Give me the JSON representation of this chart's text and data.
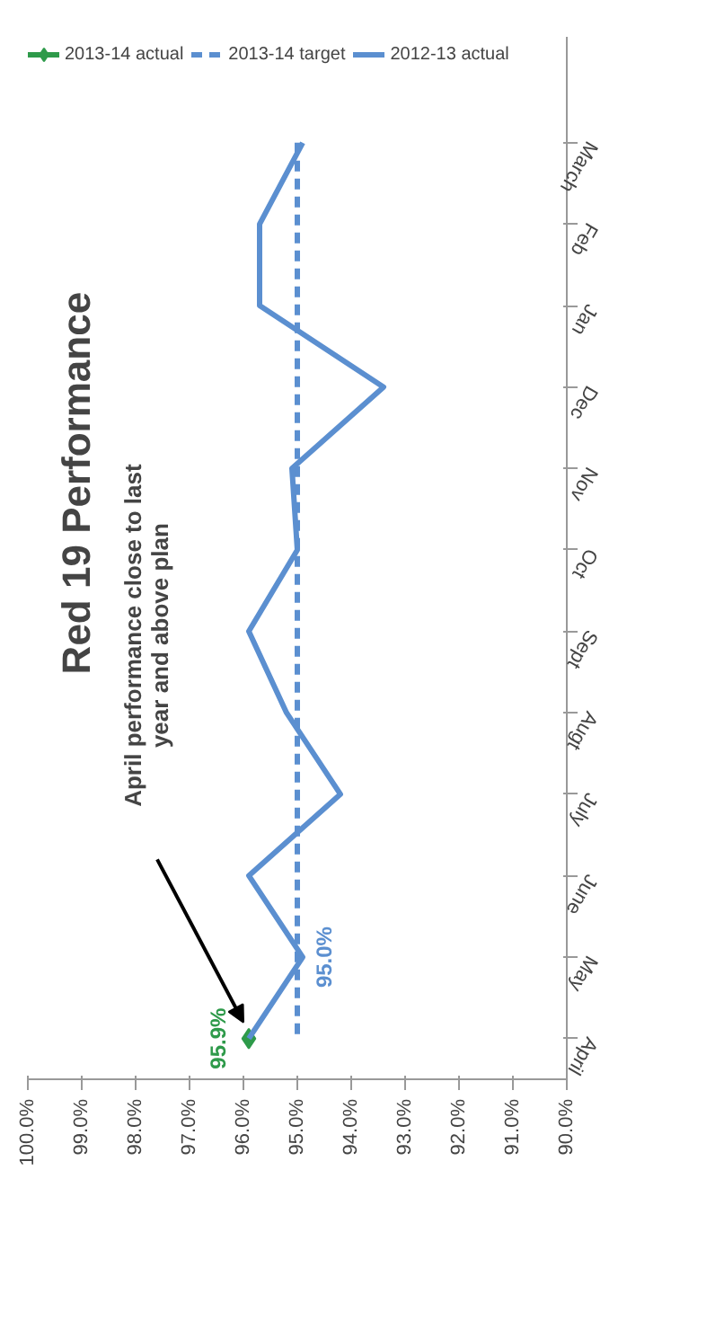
{
  "chart_data": {
    "type": "line",
    "orientation": "horizontal",
    "title": "Red 19 Performance",
    "categories": [
      "March",
      "Feb",
      "Jan",
      "Dec",
      "Nov",
      "Oct",
      "Sept",
      "Augt",
      "July",
      "June",
      "May",
      "April"
    ],
    "xlim": [
      100,
      90
    ],
    "xticks": [
      {
        "value": 100,
        "label": "100.0%"
      },
      {
        "value": 99,
        "label": "99.0%"
      },
      {
        "value": 98,
        "label": "98.0%"
      },
      {
        "value": 97,
        "label": "97.0%"
      },
      {
        "value": 96,
        "label": "96.0%"
      },
      {
        "value": 95,
        "label": "95.0%"
      },
      {
        "value": 94,
        "label": "94.0%"
      },
      {
        "value": 93,
        "label": "93.0%"
      },
      {
        "value": 92,
        "label": "92.0%"
      },
      {
        "value": 91,
        "label": "91.0%"
      },
      {
        "value": 90,
        "label": "90.0%"
      }
    ],
    "grid": false,
    "legend": "top",
    "annotations": [
      "April performance close to last year and above plan"
    ],
    "series": [
      {
        "name": "2013-14 actual",
        "color": "#2e9a4a",
        "marker": "diamond",
        "values": [
          null,
          null,
          null,
          null,
          null,
          null,
          null,
          null,
          null,
          null,
          null,
          95.9
        ],
        "value_labels": [
          null,
          null,
          null,
          null,
          null,
          null,
          null,
          null,
          null,
          null,
          null,
          "95.9%"
        ]
      },
      {
        "name": "2013-14 target",
        "color": "#5b8fd0",
        "line_style": "dashed",
        "marker": "none",
        "values": [
          95.0,
          95.0,
          95.0,
          95.0,
          95.0,
          95.0,
          95.0,
          95.0,
          95.0,
          95.0,
          95.0,
          95.0
        ],
        "value_labels": [
          null,
          null,
          null,
          null,
          null,
          null,
          null,
          null,
          null,
          null,
          "95.0%",
          null
        ]
      },
      {
        "name": "2012-13 actual",
        "color": "#5b8fd0",
        "line_style": "solid",
        "marker": "none",
        "values": [
          94.9,
          95.7,
          95.7,
          93.4,
          95.1,
          95.0,
          95.9,
          95.2,
          94.2,
          95.9,
          94.9,
          95.9
        ]
      }
    ]
  }
}
